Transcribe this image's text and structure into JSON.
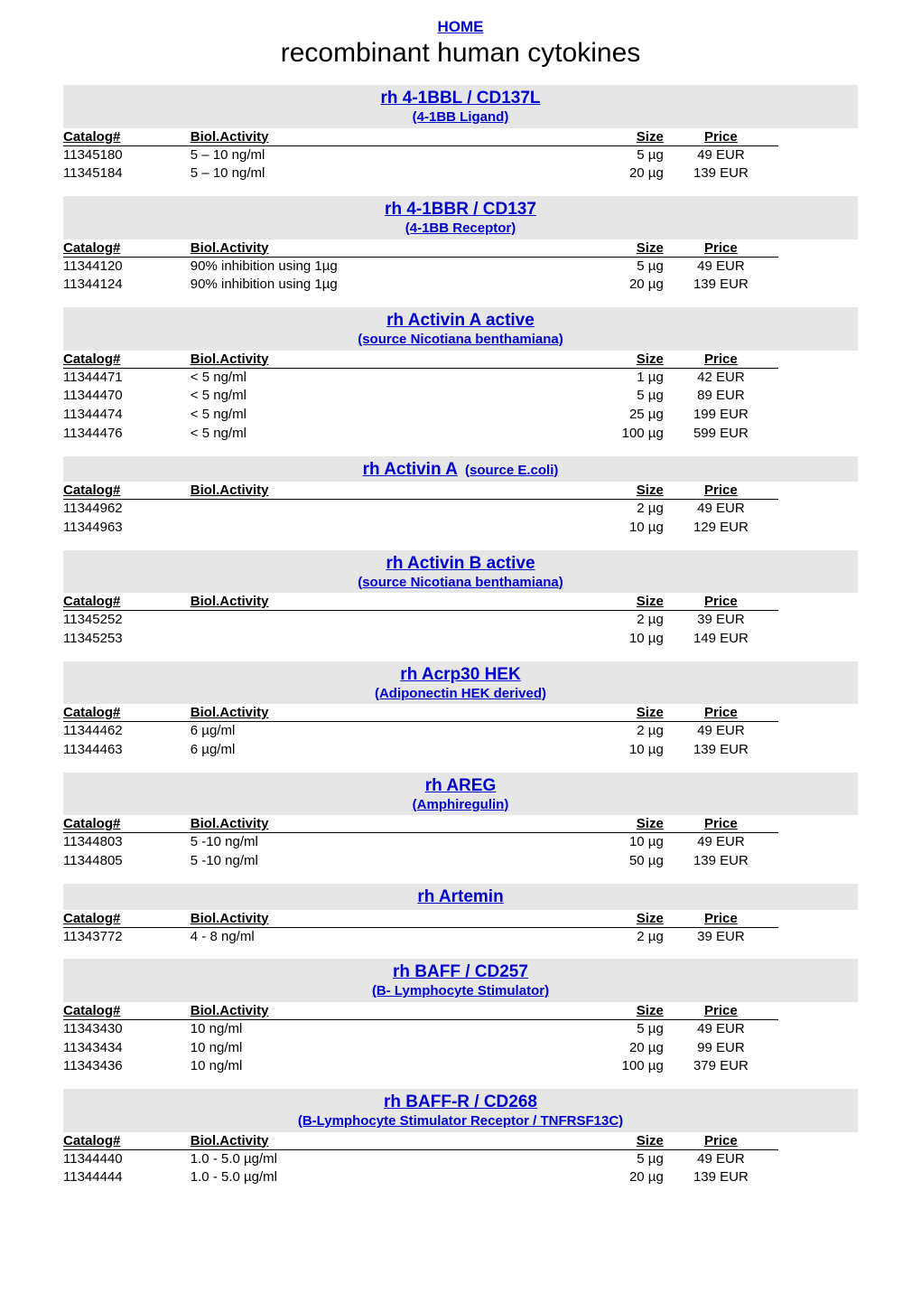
{
  "home_label": "HOME",
  "page_title": "recombinant human cytokines",
  "column_labels": {
    "catalog": "Catalog#",
    "activity": "Biol.Activity",
    "size": "Size",
    "price": "Price"
  },
  "sections": [
    {
      "title": "rh 4-1BBL / CD137L",
      "subtitle": "(4-1BB Ligand)",
      "inline": false,
      "rows": [
        {
          "catalog": "11345180",
          "activity": "5 – 10 ng/ml",
          "size": "5 µg",
          "price": "49 EUR"
        },
        {
          "catalog": "11345184",
          "activity": "5 – 10 ng/ml",
          "size": "20 µg",
          "price": "139 EUR"
        }
      ]
    },
    {
      "title": "rh 4-1BBR / CD137",
      "subtitle": "(4-1BB Receptor)",
      "inline": false,
      "rows": [
        {
          "catalog": "11344120",
          "activity": "90% inhibition using 1µg",
          "size": "5 µg",
          "price": "49 EUR"
        },
        {
          "catalog": "11344124",
          "activity": "90% inhibition using 1µg",
          "size": "20 µg",
          "price": "139 EUR"
        }
      ]
    },
    {
      "title": "rh Activin A active ",
      "subtitle": "(source Nicotiana benthamiana)",
      "inline": false,
      "rows": [
        {
          "catalog": "11344471",
          "activity": "< 5 ng/ml",
          "size": "1 µg",
          "price": "42 EUR"
        },
        {
          "catalog": "11344470",
          "activity": "< 5 ng/ml",
          "size": "5 µg",
          "price": "89 EUR"
        },
        {
          "catalog": "11344474",
          "activity": "< 5 ng/ml",
          "size": "25 µg",
          "price": "199 EUR"
        },
        {
          "catalog": "11344476",
          "activity": "< 5 ng/ml",
          "size": "100 µg",
          "price": "599 EUR"
        }
      ]
    },
    {
      "title": "rh Activin A",
      "subtitle": "(source E.coli)",
      "inline": true,
      "rows": [
        {
          "catalog": "11344962",
          "activity": "",
          "size": "2 µg",
          "price": "49 EUR"
        },
        {
          "catalog": "11344963",
          "activity": "",
          "size": "10 µg",
          "price": "129 EUR"
        }
      ]
    },
    {
      "title": "rh Activin B active ",
      "subtitle": "(source Nicotiana benthamiana)",
      "inline": false,
      "rows": [
        {
          "catalog": "11345252",
          "activity": "",
          "size": "2 µg",
          "price": "39 EUR"
        },
        {
          "catalog": "11345253",
          "activity": "",
          "size": "10 µg",
          "price": "149 EUR"
        }
      ]
    },
    {
      "title": "rh Acrp30 HEK",
      "subtitle": "(Adiponectin HEK derived)",
      "inline": false,
      "rows": [
        {
          "catalog": "11344462",
          "activity": "6 µg/ml",
          "size": "2 µg",
          "price": "49 EUR"
        },
        {
          "catalog": "11344463",
          "activity": "6 µg/ml",
          "size": "10 µg",
          "price": "139 EUR"
        }
      ]
    },
    {
      "title": "rh AREG",
      "subtitle": "(Amphiregulin)",
      "inline": false,
      "rows": [
        {
          "catalog": "11344803",
          "activity": "5 -10 ng/ml",
          "size": "10 µg",
          "price": "49 EUR"
        },
        {
          "catalog": "11344805",
          "activity": "5 -10 ng/ml",
          "size": "50 µg",
          "price": "139 EUR"
        }
      ]
    },
    {
      "title": "rh Artemin",
      "subtitle": "",
      "inline": false,
      "rows": [
        {
          "catalog": "11343772",
          "activity": "4 - 8 ng/ml",
          "size": "2 µg",
          "price": "39 EUR"
        }
      ]
    },
    {
      "title": "rh BAFF / CD257",
      "subtitle": "(B- Lymphocyte Stimulator)",
      "inline": false,
      "rows": [
        {
          "catalog": "11343430",
          "activity": "10 ng/ml",
          "size": "5 µg",
          "price": "49 EUR"
        },
        {
          "catalog": "11343434",
          "activity": "10 ng/ml",
          "size": "20 µg",
          "price": "99 EUR"
        },
        {
          "catalog": "11343436",
          "activity": "10 ng/ml",
          "size": "100 µg",
          "price": "379 EUR"
        }
      ]
    },
    {
      "title": "rh BAFF-R / CD268",
      "subtitle": "(B-Lymphocyte Stimulator Receptor / TNFRSF13C)",
      "inline": false,
      "rows": [
        {
          "catalog": "11344440",
          "activity": "1.0 - 5.0 µg/ml",
          "size": "5 µg",
          "price": "49 EUR"
        },
        {
          "catalog": "11344444",
          "activity": "1.0 - 5.0 µg/ml",
          "size": "20 µg",
          "price": "139 EUR"
        }
      ]
    }
  ]
}
